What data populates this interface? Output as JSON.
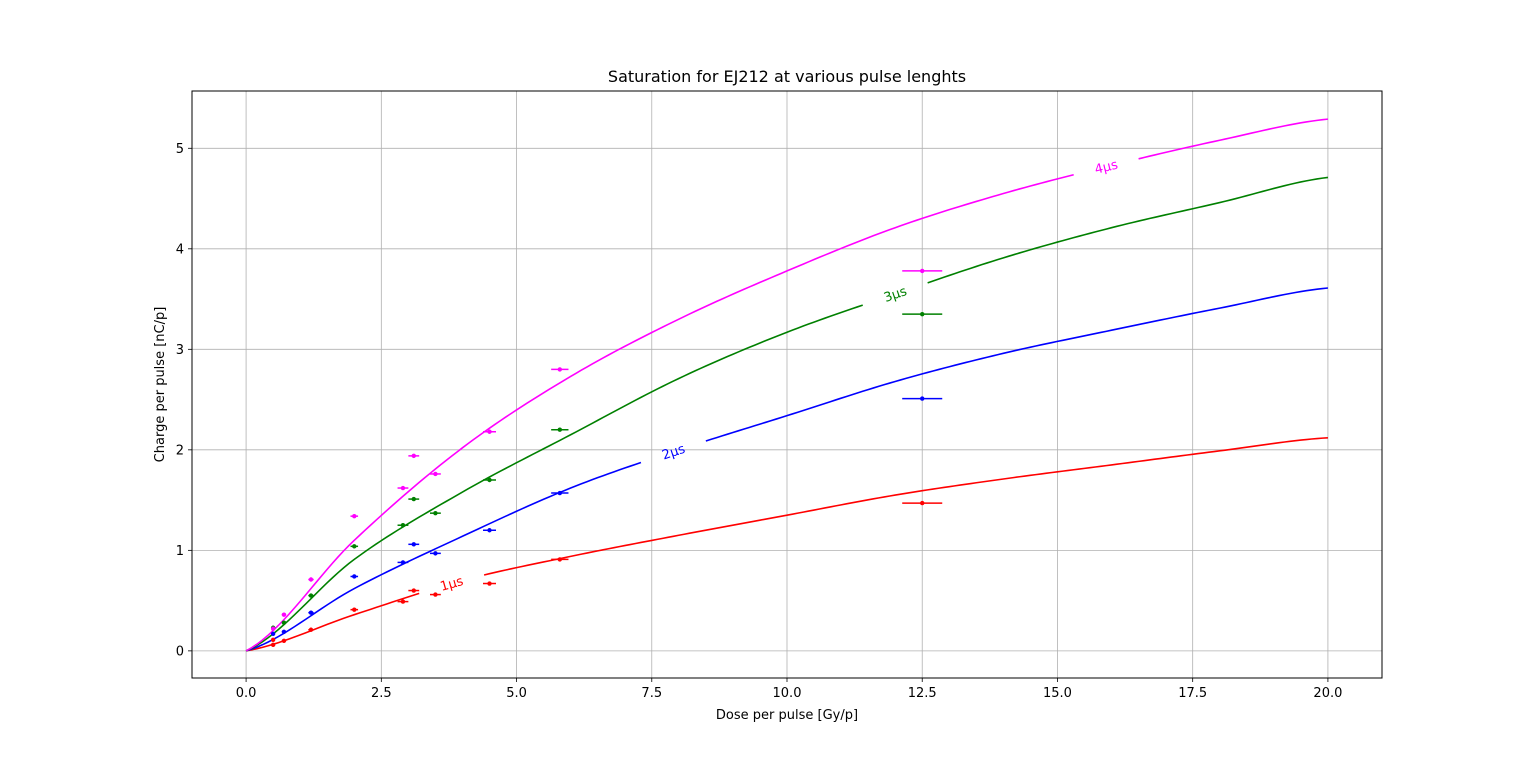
{
  "chart_data": {
    "type": "scatter",
    "title": "Saturation for EJ212 at various pulse lenghts",
    "xlabel": "Dose per pulse [Gy/p]",
    "ylabel": "Charge per pulse [nC/p]",
    "xlim": [
      -1.0,
      21.0
    ],
    "ylim": [
      -0.27,
      5.57
    ],
    "xticks": [
      0.0,
      2.5,
      5.0,
      7.5,
      10.0,
      12.5,
      15.0,
      17.5,
      20.0
    ],
    "xtick_labels": [
      "0.0",
      "2.5",
      "5.0",
      "7.5",
      "10.0",
      "12.5",
      "15.0",
      "17.5",
      "20.0"
    ],
    "yticks": [
      0,
      1,
      2,
      3,
      4,
      5
    ],
    "ytick_labels": [
      "0",
      "1",
      "2",
      "3",
      "4",
      "5"
    ],
    "grid": true,
    "legend": "none",
    "series": [
      {
        "name": "1μs",
        "color": "#ff0000",
        "fit": {
          "x": [
            0,
            2,
            4,
            6,
            8,
            10,
            12,
            14,
            16,
            18,
            20
          ],
          "y": [
            0,
            0.36,
            0.7,
            0.94,
            1.15,
            1.35,
            1.55,
            1.71,
            1.85,
            1.99,
            2.12
          ]
        },
        "label_at_x": 3.8,
        "points": [
          {
            "x": 0.5,
            "y": 0.06,
            "xerr": 0.03
          },
          {
            "x": 0.5,
            "y": 0.11,
            "xerr": 0.03
          },
          {
            "x": 0.7,
            "y": 0.1,
            "xerr": 0.04
          },
          {
            "x": 1.2,
            "y": 0.21,
            "xerr": 0.05
          },
          {
            "x": 2.0,
            "y": 0.41,
            "xerr": 0.07
          },
          {
            "x": 2.9,
            "y": 0.49,
            "xerr": 0.1
          },
          {
            "x": 3.1,
            "y": 0.6,
            "xerr": 0.1
          },
          {
            "x": 3.5,
            "y": 0.56,
            "xerr": 0.1
          },
          {
            "x": 4.5,
            "y": 0.67,
            "xerr": 0.12
          },
          {
            "x": 5.8,
            "y": 0.91,
            "xerr": 0.16
          },
          {
            "x": 12.5,
            "y": 1.47,
            "xerr": 0.37
          }
        ]
      },
      {
        "name": "2μs",
        "color": "#0000ff",
        "fit": {
          "x": [
            0,
            2,
            4,
            6,
            8,
            10,
            12,
            14,
            16,
            18,
            20
          ],
          "y": [
            0,
            0.62,
            1.14,
            1.62,
            2.0,
            2.34,
            2.68,
            2.96,
            3.19,
            3.41,
            3.61
          ]
        },
        "label_at_x": 7.9,
        "points": [
          {
            "x": 0.5,
            "y": 0.17,
            "xerr": 0.03
          },
          {
            "x": 0.7,
            "y": 0.19,
            "xerr": 0.04
          },
          {
            "x": 1.2,
            "y": 0.38,
            "xerr": 0.05
          },
          {
            "x": 2.0,
            "y": 0.74,
            "xerr": 0.07
          },
          {
            "x": 2.9,
            "y": 0.88,
            "xerr": 0.1
          },
          {
            "x": 3.1,
            "y": 1.06,
            "xerr": 0.1
          },
          {
            "x": 3.5,
            "y": 0.97,
            "xerr": 0.1
          },
          {
            "x": 4.5,
            "y": 1.2,
            "xerr": 0.12
          },
          {
            "x": 5.8,
            "y": 1.57,
            "xerr": 0.16
          },
          {
            "x": 12.5,
            "y": 2.51,
            "xerr": 0.37
          }
        ]
      },
      {
        "name": "3μs",
        "color": "#008000",
        "fit": {
          "x": [
            0,
            2,
            4,
            6,
            8,
            10,
            12,
            14,
            16,
            18,
            20
          ],
          "y": [
            0,
            0.91,
            1.58,
            2.15,
            2.71,
            3.17,
            3.55,
            3.91,
            4.21,
            4.46,
            4.71
          ]
        },
        "label_at_x": 12.0,
        "points": [
          {
            "x": 0.5,
            "y": 0.23,
            "xerr": 0.03
          },
          {
            "x": 0.7,
            "y": 0.28,
            "xerr": 0.04
          },
          {
            "x": 1.2,
            "y": 0.55,
            "xerr": 0.05
          },
          {
            "x": 2.0,
            "y": 1.04,
            "xerr": 0.07
          },
          {
            "x": 2.9,
            "y": 1.25,
            "xerr": 0.1
          },
          {
            "x": 3.1,
            "y": 1.51,
            "xerr": 0.1
          },
          {
            "x": 3.5,
            "y": 1.37,
            "xerr": 0.1
          },
          {
            "x": 4.5,
            "y": 1.7,
            "xerr": 0.12
          },
          {
            "x": 5.8,
            "y": 2.2,
            "xerr": 0.16
          },
          {
            "x": 12.5,
            "y": 3.35,
            "xerr": 0.37
          }
        ]
      },
      {
        "name": "4μs",
        "color": "#ff00ff",
        "fit": {
          "x": [
            0,
            2,
            4,
            6,
            8,
            10,
            12,
            14,
            16,
            18,
            20
          ],
          "y": [
            0,
            1.1,
            2.02,
            2.73,
            3.3,
            3.78,
            4.21,
            4.55,
            4.83,
            5.08,
            5.29
          ]
        },
        "label_at_x": 15.9,
        "points": [
          {
            "x": 0.5,
            "y": 0.22,
            "xerr": 0.03
          },
          {
            "x": 0.7,
            "y": 0.36,
            "xerr": 0.04
          },
          {
            "x": 1.2,
            "y": 0.71,
            "xerr": 0.05
          },
          {
            "x": 2.0,
            "y": 1.34,
            "xerr": 0.07
          },
          {
            "x": 2.9,
            "y": 1.62,
            "xerr": 0.1
          },
          {
            "x": 3.1,
            "y": 1.94,
            "xerr": 0.1
          },
          {
            "x": 3.5,
            "y": 1.76,
            "xerr": 0.1
          },
          {
            "x": 4.5,
            "y": 2.18,
            "xerr": 0.12
          },
          {
            "x": 5.8,
            "y": 2.8,
            "xerr": 0.16
          },
          {
            "x": 12.5,
            "y": 3.78,
            "xerr": 0.37
          }
        ]
      }
    ]
  }
}
